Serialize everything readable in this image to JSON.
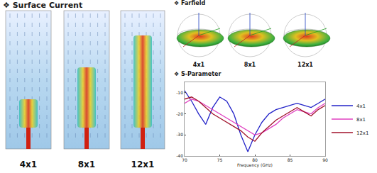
{
  "surface_current": {
    "title": "❖ Surface Current",
    "labels": [
      "4x1",
      "8x1",
      "12x1"
    ]
  },
  "farfield": {
    "title": "❖ Farfield",
    "labels": [
      "4x1",
      "8x1",
      "12x1"
    ]
  },
  "chart_data": {
    "type": "line",
    "title": "❖ S-Parameter",
    "x_label": "Frequency (GHz)",
    "x": [
      70,
      71,
      72,
      73,
      74,
      75,
      76,
      77,
      78,
      79,
      80,
      81,
      82,
      83,
      84,
      85,
      86,
      87,
      88,
      89,
      90
    ],
    "series": [
      {
        "name": "4x1",
        "color": "#2323c8",
        "values": [
          -9,
          -14,
          -20,
          -25,
          -17,
          -12,
          -14,
          -20,
          -30,
          -38,
          -30,
          -24,
          -20,
          -18,
          -17,
          -16,
          -15,
          -16,
          -17,
          -15,
          -13
        ]
      },
      {
        "name": "8x1",
        "color": "#e040c0",
        "values": [
          -15,
          -13,
          -14,
          -16,
          -18,
          -20,
          -22,
          -24,
          -26,
          -28,
          -30,
          -29,
          -27,
          -25,
          -22,
          -20,
          -18,
          -19,
          -20,
          -17,
          -15
        ]
      },
      {
        "name": "12x1",
        "color": "#a0102a",
        "values": [
          -13,
          -12,
          -14,
          -17,
          -20,
          -22,
          -24,
          -26,
          -28,
          -31,
          -33,
          -29,
          -26,
          -23,
          -21,
          -19,
          -17,
          -19,
          -21,
          -18,
          -16
        ]
      }
    ],
    "xlim": [
      70,
      90
    ],
    "xticks": [
      70,
      75,
      80,
      85,
      90
    ],
    "ylim": [
      -40,
      -5
    ],
    "yticks": [
      -40,
      -30,
      -20,
      -10
    ],
    "grid": false,
    "legend": "right"
  }
}
